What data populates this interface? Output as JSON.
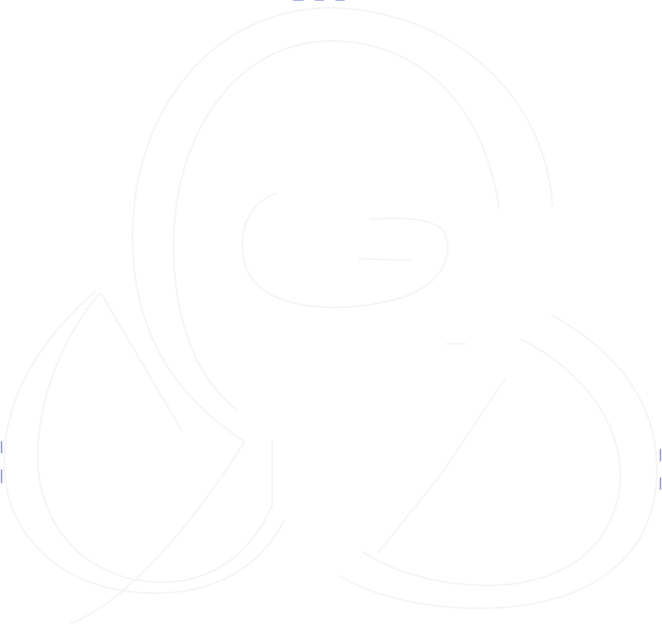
{
  "image": {
    "icon": "faint-outlined-symbol-icon",
    "background_color": "#ffffff",
    "stroke_color": "#f4f4f6",
    "accent_color": "#9aa0e6"
  }
}
